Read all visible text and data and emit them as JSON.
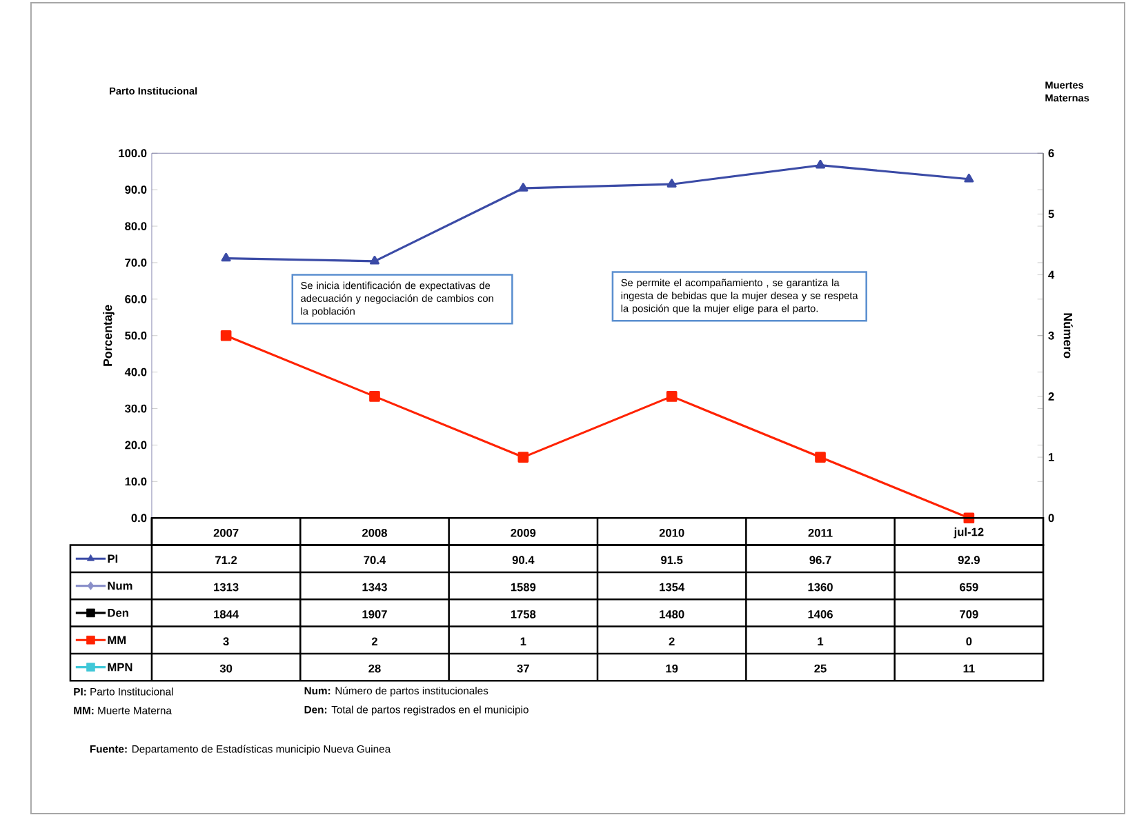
{
  "chart_data": {
    "type": "line",
    "title": "Parto Institucional",
    "ylabel": "Porcentaje",
    "y2label": "Número",
    "categories": [
      "2007",
      "2008",
      "2009",
      "2010",
      "2011",
      "jul-12"
    ],
    "ylim": [
      0,
      100
    ],
    "yticks": [
      {
        "value": 0,
        "label": "0.0"
      },
      {
        "value": 10,
        "label": "10.0"
      },
      {
        "value": 20,
        "label": "20.0"
      },
      {
        "value": 30,
        "label": "30.0"
      },
      {
        "value": 40,
        "label": "40.0"
      },
      {
        "value": 50,
        "label": "50.0"
      },
      {
        "value": 60,
        "label": "60.0"
      },
      {
        "value": 70,
        "label": "70.0"
      },
      {
        "value": 80,
        "label": "80.0"
      },
      {
        "value": 90,
        "label": "90.0"
      },
      {
        "value": 100,
        "label": "100.0"
      }
    ],
    "y2lim": [
      0,
      6
    ],
    "y2ticks": [
      0,
      1,
      2,
      3,
      4,
      5,
      6
    ],
    "series": [
      {
        "name": "PI",
        "color": "#3b4ba6",
        "marker": "triangle",
        "values": [
          71.2,
          70.4,
          90.4,
          91.5,
          96.7,
          92.9
        ]
      },
      {
        "name": "Num",
        "color": "#8a8fc9",
        "marker": "diamond",
        "values": [
          null,
          null,
          null,
          null,
          null,
          null
        ],
        "value_labels": [
          "1313",
          "1343",
          "1589",
          "1354",
          "1360",
          "659"
        ]
      },
      {
        "name": "Den",
        "color": "#000000",
        "marker": "square",
        "values": [
          null,
          null,
          null,
          null,
          null,
          null
        ],
        "value_labels": [
          "1844",
          "1907",
          "1758",
          "1480",
          "1406",
          "709"
        ]
      },
      {
        "name": "MM",
        "axis": "y2",
        "color": "#ff2200",
        "marker": "square",
        "values": [
          3,
          2,
          1,
          2,
          1,
          0
        ]
      },
      {
        "name": "MPN",
        "color": "#40c8d8",
        "marker": "square",
        "values": [
          null,
          null,
          null,
          null,
          null,
          null
        ],
        "value_labels": [
          "30",
          "28",
          "37",
          "19",
          "25",
          "11"
        ]
      }
    ],
    "data_labels": true,
    "legend": "bottom left",
    "annotations": [
      "Se inicia identificación de expectativas de adecuación  y negociación  de cambios con la población",
      "Se permite el acompañamiento , se garantiza la ingesta de bebidas que la mujer desea y se respeta la posición que la mujer elige para el parto.",
      "Muertes Maternas",
      "**PI:** Parto Institucional",
      "**Num:** Número de partos institucionales",
      "**MM:** Muerte Materna",
      "**Den:** Total de partos registrados en el municipio",
      "**Fuente:** Departamento de Estadísticas municipio Nueva Guinea"
    ]
  }
}
